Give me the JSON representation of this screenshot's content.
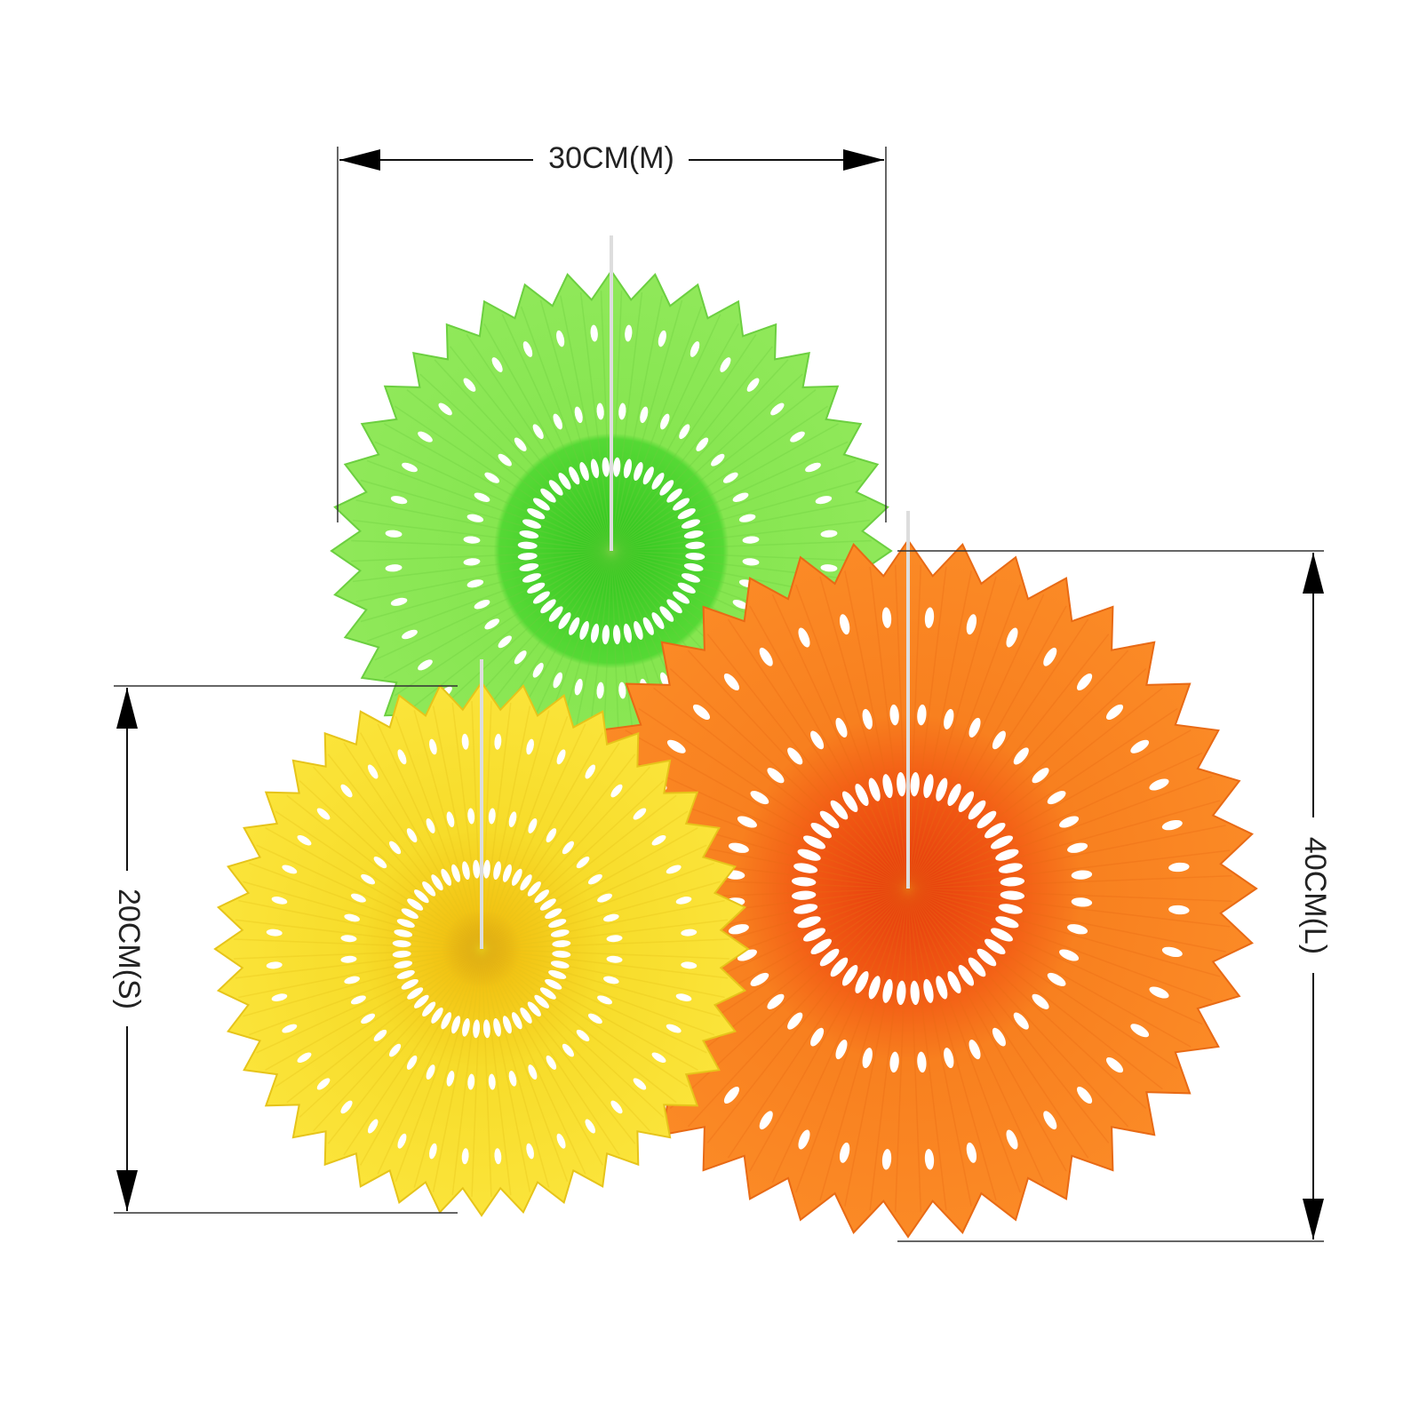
{
  "dimensions": [
    {
      "label": "30CM(M)"
    },
    {
      "label": "20CM(S)"
    },
    {
      "label": "40CM(L)"
    }
  ]
}
